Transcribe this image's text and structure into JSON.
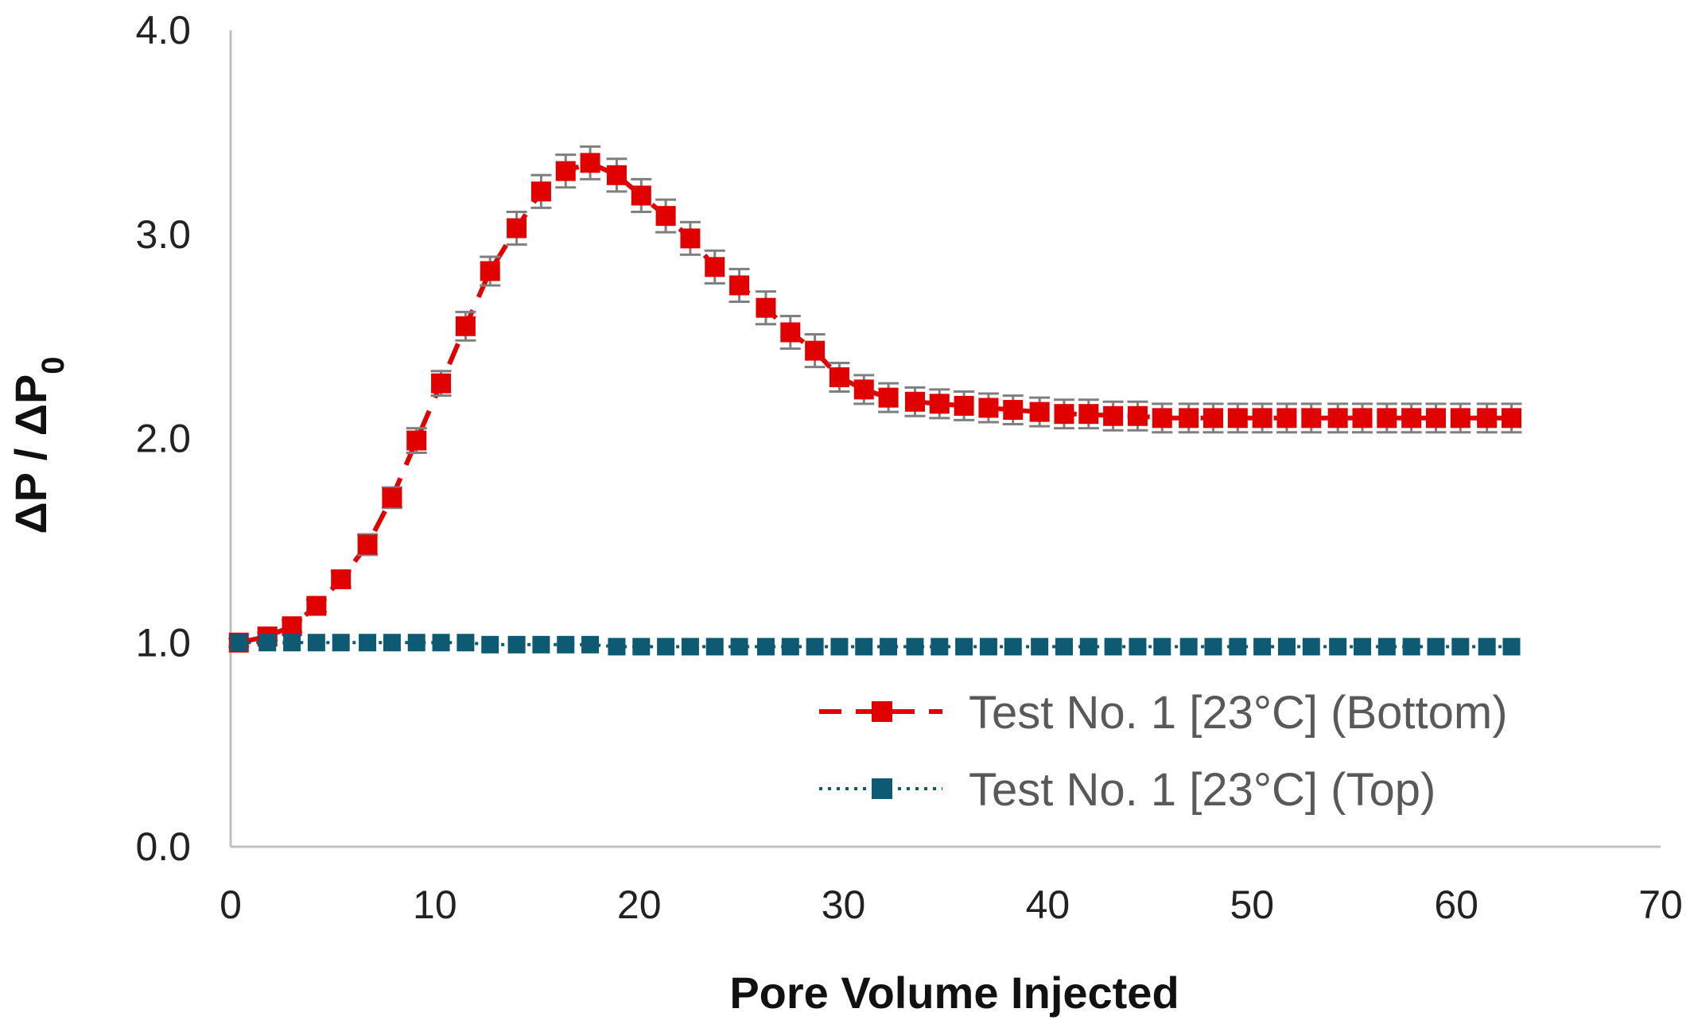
{
  "chart_data": {
    "type": "scatter",
    "title": "",
    "xlabel": "Pore Volume Injected",
    "ylabel": "ΔP / ΔP0",
    "ylabel_parts": {
      "main": "ΔP / ΔP",
      "subscript": "0"
    },
    "xlim": [
      0,
      70
    ],
    "ylim": [
      0,
      4
    ],
    "xticks": [
      0,
      10,
      20,
      30,
      40,
      50,
      60,
      70
    ],
    "yticks": [
      0,
      1,
      2,
      3,
      4
    ],
    "xtick_labels": [
      "0",
      "10",
      "20",
      "30",
      "40",
      "50",
      "60",
      "70"
    ],
    "ytick_labels": [
      "0.0",
      "1.0",
      "2.0",
      "3.0",
      "4.0"
    ],
    "grid": false,
    "legend_position": "bottom-right",
    "series": [
      {
        "name": "Test No. 1 [23°C] (Bottom)",
        "color": "#e00000",
        "line_style": "dashed",
        "marker": "square",
        "error_bar_color": "#7f7f7f",
        "x": [
          0.4,
          1.8,
          3.0,
          4.2,
          5.4,
          6.7,
          7.9,
          9.1,
          10.3,
          11.5,
          12.7,
          14.0,
          15.2,
          16.4,
          17.6,
          18.9,
          20.1,
          21.3,
          22.5,
          23.7,
          24.9,
          26.2,
          27.4,
          28.6,
          29.8,
          31.0,
          32.2,
          33.5,
          34.7,
          35.9,
          37.1,
          38.3,
          39.6,
          40.8,
          42.0,
          43.2,
          44.4,
          45.6,
          46.9,
          48.1,
          49.3,
          50.5,
          51.7,
          52.9,
          54.2,
          55.4,
          56.6,
          57.8,
          59.0,
          60.2,
          61.5,
          62.7
        ],
        "y": [
          1.0,
          1.03,
          1.08,
          1.18,
          1.31,
          1.48,
          1.71,
          1.99,
          2.27,
          2.55,
          2.82,
          3.03,
          3.21,
          3.31,
          3.35,
          3.29,
          3.19,
          3.09,
          2.98,
          2.84,
          2.75,
          2.64,
          2.52,
          2.43,
          2.3,
          2.24,
          2.2,
          2.18,
          2.17,
          2.16,
          2.15,
          2.14,
          2.13,
          2.12,
          2.12,
          2.11,
          2.11,
          2.1,
          2.1,
          2.1,
          2.1,
          2.1,
          2.1,
          2.1,
          2.1,
          2.1,
          2.1,
          2.1,
          2.1,
          2.1,
          2.1,
          2.1
        ],
        "error": [
          0.02,
          0.02,
          0.03,
          0.03,
          0.04,
          0.05,
          0.05,
          0.06,
          0.06,
          0.07,
          0.07,
          0.08,
          0.08,
          0.08,
          0.08,
          0.08,
          0.08,
          0.08,
          0.08,
          0.08,
          0.08,
          0.08,
          0.08,
          0.08,
          0.07,
          0.07,
          0.07,
          0.07,
          0.07,
          0.07,
          0.07,
          0.07,
          0.07,
          0.07,
          0.07,
          0.07,
          0.07,
          0.07,
          0.07,
          0.07,
          0.07,
          0.07,
          0.07,
          0.07,
          0.07,
          0.07,
          0.07,
          0.07,
          0.07,
          0.07,
          0.07,
          0.07
        ]
      },
      {
        "name": "Test No. 1 [23°C] (Top)",
        "color": "#0f5a73",
        "line_style": "dotted",
        "marker": "square",
        "x": [
          0.4,
          1.8,
          3.0,
          4.2,
          5.4,
          6.7,
          7.9,
          9.1,
          10.3,
          11.5,
          12.7,
          14.0,
          15.2,
          16.4,
          17.6,
          18.9,
          20.1,
          21.3,
          22.5,
          23.7,
          24.9,
          26.2,
          27.4,
          28.6,
          29.8,
          31.0,
          32.2,
          33.5,
          34.7,
          35.9,
          37.1,
          38.3,
          39.6,
          40.8,
          42.0,
          43.2,
          44.4,
          45.6,
          46.9,
          48.1,
          49.3,
          50.5,
          51.7,
          52.9,
          54.2,
          55.4,
          56.6,
          57.8,
          59.0,
          60.2,
          61.5,
          62.7
        ],
        "y": [
          1.0,
          1.0,
          1.0,
          1.0,
          1.0,
          1.0,
          1.0,
          1.0,
          1.0,
          1.0,
          0.99,
          0.99,
          0.99,
          0.99,
          0.99,
          0.98,
          0.98,
          0.98,
          0.98,
          0.98,
          0.98,
          0.98,
          0.98,
          0.98,
          0.98,
          0.98,
          0.98,
          0.98,
          0.98,
          0.98,
          0.98,
          0.98,
          0.98,
          0.98,
          0.98,
          0.98,
          0.98,
          0.98,
          0.98,
          0.98,
          0.98,
          0.98,
          0.98,
          0.98,
          0.98,
          0.98,
          0.98,
          0.98,
          0.98,
          0.98,
          0.98,
          0.98
        ]
      }
    ]
  }
}
